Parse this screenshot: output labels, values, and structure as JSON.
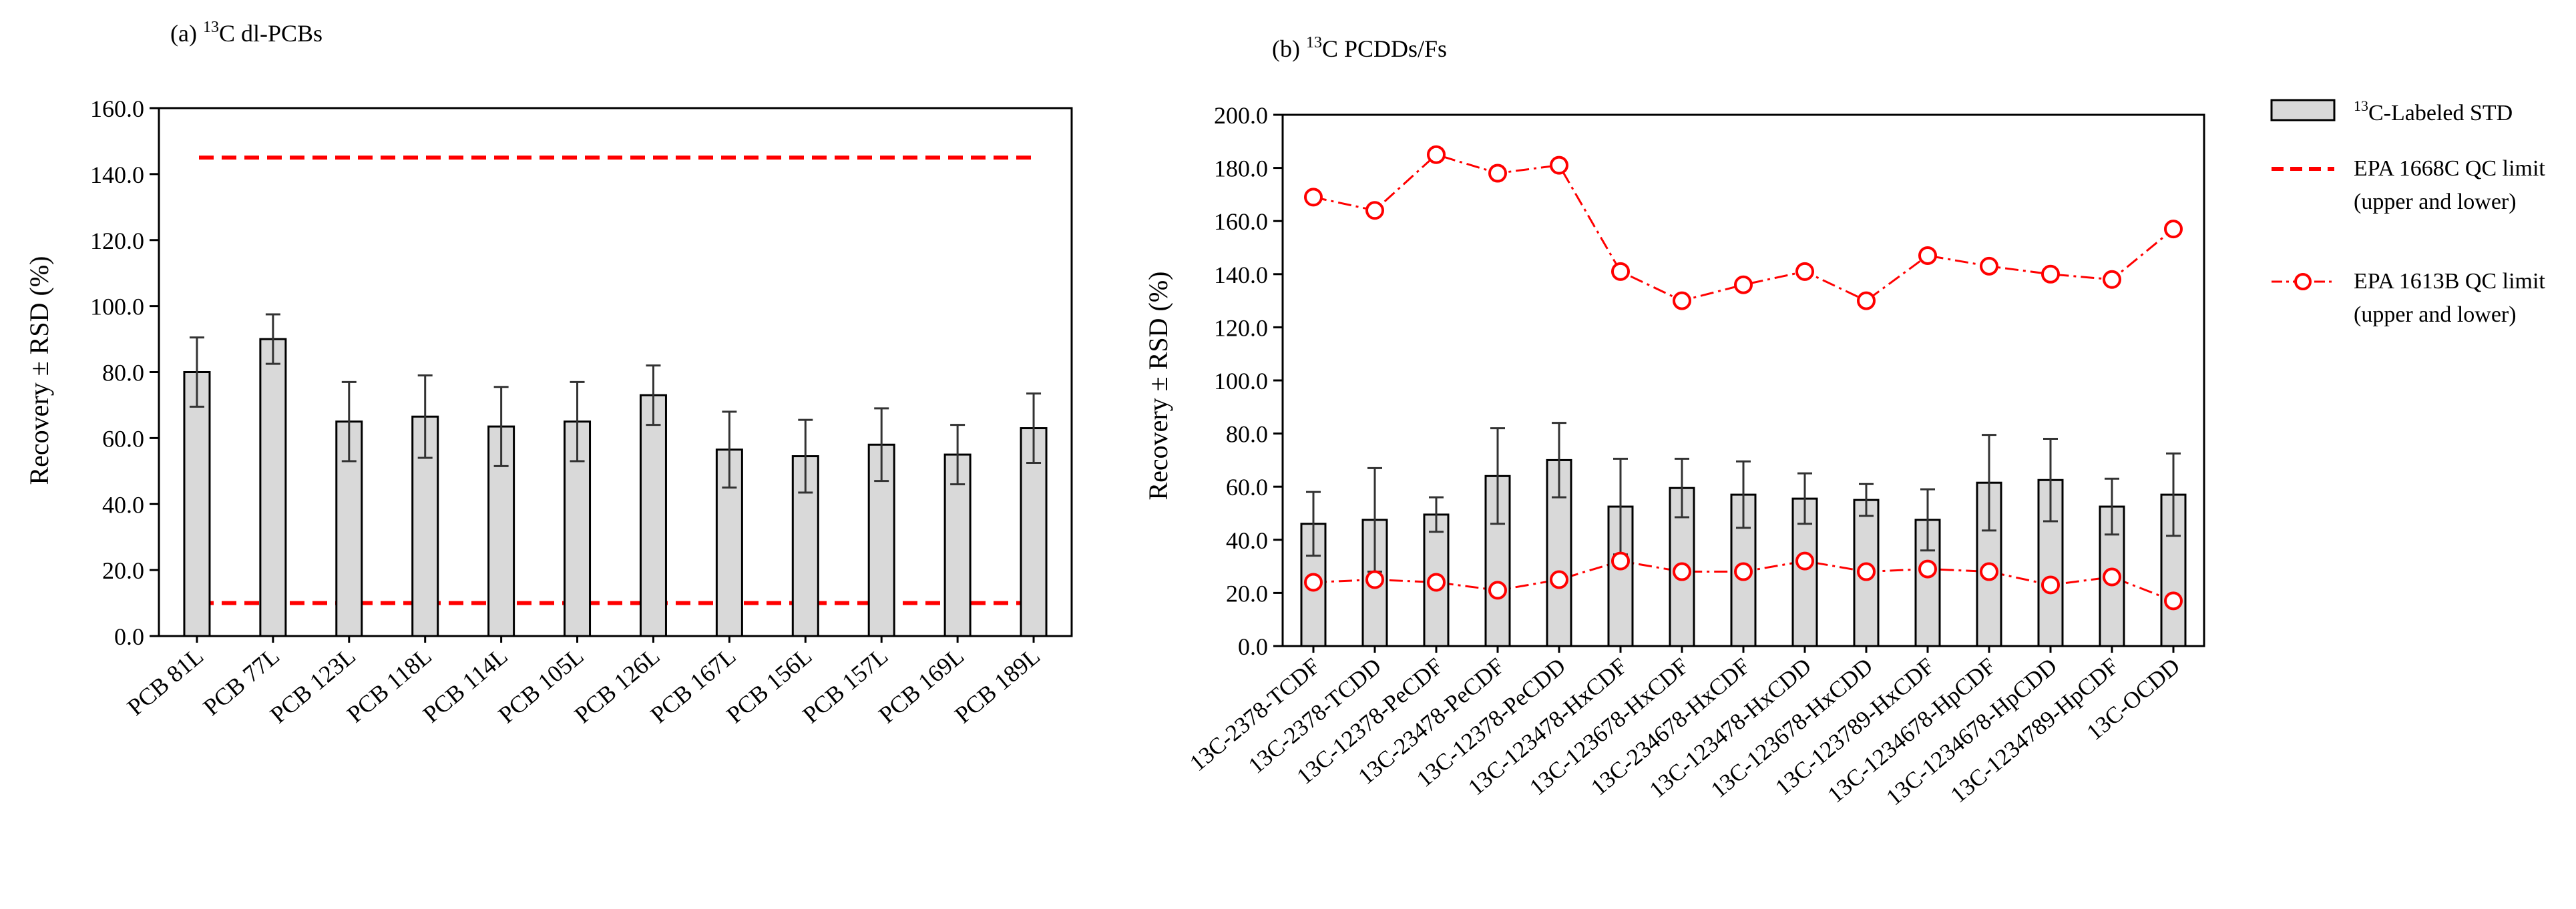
{
  "chart_data": [
    {
      "type": "bar",
      "panel_label": "(a) ",
      "title_sup": "13",
      "title_rest": "C dl-PCBs",
      "ylabel": "Recovery ± RSD (%)",
      "ylim": [
        0,
        160
      ],
      "yticks": [
        0,
        20,
        40,
        60,
        80,
        100,
        120,
        140,
        160
      ],
      "ytick_labels": [
        "0.0",
        "20.0",
        "40.0",
        "60.0",
        "80.0",
        "100.0",
        "120.0",
        "140.0",
        "160.0"
      ],
      "categories": [
        "PCB 81L",
        "PCB 77L",
        "PCB 123L",
        "PCB 118L",
        "PCB 114L",
        "PCB 105L",
        "PCB 126L",
        "PCB 167L",
        "PCB 156L",
        "PCB 157L",
        "PCB 169L",
        "PCB 189L"
      ],
      "values": [
        80,
        90,
        65,
        66.5,
        63.5,
        65,
        73,
        56.5,
        54.5,
        58,
        55,
        63
      ],
      "errors": [
        10.5,
        7.5,
        12,
        12.5,
        12,
        12,
        9,
        11.5,
        11,
        11,
        9,
        10.5
      ],
      "limits": [
        {
          "name": "EPA 1668C QC limit (upper)",
          "value": 145
        },
        {
          "name": "EPA 1668C QC limit (lower)",
          "value": 10
        }
      ]
    },
    {
      "type": "bar",
      "panel_label": "(b) ",
      "title_sup": "13",
      "title_rest": "C PCDDs/Fs",
      "ylabel": "Recovery ± RSD (%)",
      "ylim": [
        0,
        200
      ],
      "yticks": [
        0,
        20,
        40,
        60,
        80,
        100,
        120,
        140,
        160,
        180,
        200
      ],
      "ytick_labels": [
        "0.0",
        "20.0",
        "40.0",
        "60.0",
        "80.0",
        "100.0",
        "120.0",
        "140.0",
        "160.0",
        "180.0",
        "200.0"
      ],
      "categories": [
        "13C-2378-TCDF",
        "13C-2378-TCDD",
        "13C-12378-PeCDF",
        "13C-23478-PeCDF",
        "13C-12378-PeCDD",
        "13C-123478-HxCDF",
        "13C-123678-HxCDF",
        "13C-234678-HxCDF",
        "13C-123478-HxCDD",
        "13C-123678-HxCDD",
        "13C-123789-HxCDF",
        "13C-1234678-HpCDF",
        "13C-1234678-HpCDD",
        "13C-1234789-HpCDF",
        "13C-OCDD"
      ],
      "values": [
        46,
        47.5,
        49.5,
        64,
        70,
        52.5,
        59.5,
        57,
        55.5,
        55,
        47.5,
        61.5,
        62.5,
        52.5,
        57
      ],
      "errors": [
        12,
        19.5,
        6.5,
        18,
        14,
        18,
        11,
        12.5,
        9.5,
        6,
        11.5,
        18,
        15.5,
        10.5,
        15.5
      ],
      "upper_limit": [
        169,
        164,
        185,
        178,
        181,
        141,
        130,
        136,
        141,
        130,
        147,
        143,
        140,
        138,
        157
      ],
      "lower_limit": [
        24,
        25,
        24,
        21,
        25,
        32,
        28,
        28,
        32,
        28,
        29,
        28,
        23,
        26,
        17
      ]
    }
  ],
  "legend": [
    {
      "sup": "13",
      "label": "C-Labeled STD"
    },
    {
      "label": "EPA 1668C QC limit",
      "label2": "(upper and lower)"
    },
    {
      "label": "EPA 1613B QC limit",
      "label2": "(upper and lower)"
    }
  ],
  "colors": {
    "bar_fill": "#d9d9d9",
    "bar_stroke": "#000000",
    "limit_red": "#ff0000",
    "axis": "#000000"
  }
}
